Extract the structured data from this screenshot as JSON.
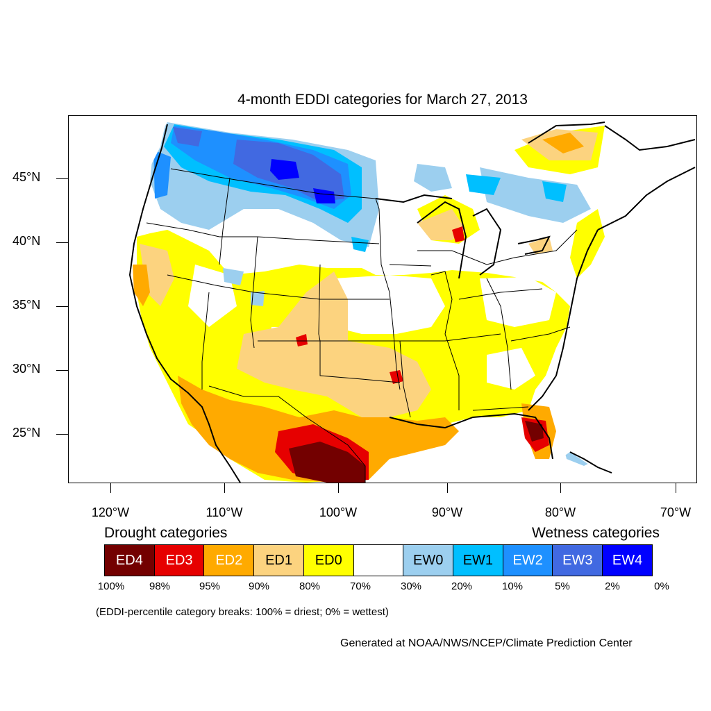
{
  "title": "4-month EDDI categories for March 27, 2013",
  "lat_labels": [
    "45°N",
    "40°N",
    "35°N",
    "30°N",
    "25°N"
  ],
  "lon_labels": [
    "120°W",
    "110°W",
    "100°W",
    "90°W",
    "80°W",
    "70°W"
  ],
  "legend": {
    "drought_heading": "Drought categories",
    "wetness_heading": "Wetness categories",
    "categories": [
      {
        "label": "ED4",
        "color": "#730000"
      },
      {
        "label": "ED3",
        "color": "#e60000"
      },
      {
        "label": "ED2",
        "color": "#ffaa00"
      },
      {
        "label": "ED1",
        "color": "#fcd37f"
      },
      {
        "label": "ED0",
        "color": "#ffff00"
      },
      {
        "label": "",
        "color": "#ffffff"
      },
      {
        "label": "EW0",
        "color": "#9ccfef"
      },
      {
        "label": "EW1",
        "color": "#00bfff"
      },
      {
        "label": "EW2",
        "color": "#1e90ff"
      },
      {
        "label": "EW3",
        "color": "#4169e1"
      },
      {
        "label": "EW4",
        "color": "#0000ff"
      }
    ],
    "percentiles": [
      "100%",
      "98%",
      "95%",
      "90%",
      "80%",
      "70%",
      "30%",
      "20%",
      "10%",
      "5%",
      "2%",
      "0%"
    ]
  },
  "note": "(EDDI-percentile category breaks: 100% = driest; 0% = wettest)",
  "credit": "Generated at NOAA/NWS/NCEP/Climate Prediction Center"
}
